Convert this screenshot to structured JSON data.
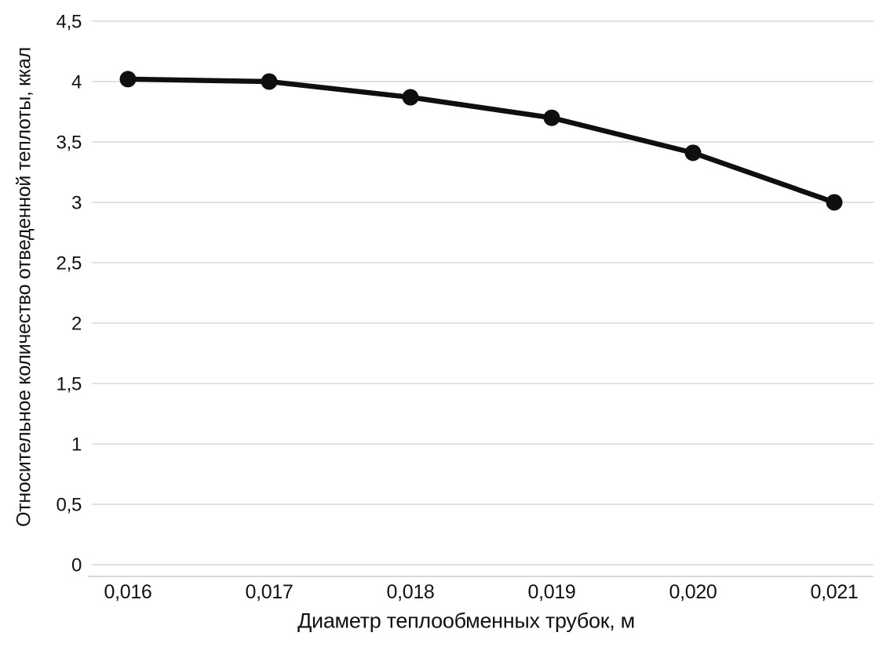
{
  "figure": {
    "background": "#ffffff"
  },
  "chart_data": {
    "type": "line",
    "title": "",
    "x_values": [
      0.016,
      0.017,
      0.018,
      0.019,
      0.02,
      0.021
    ],
    "x_tick_labels": [
      "0,016",
      "0,017",
      "0,018",
      "0,019",
      "0,020",
      "0,021"
    ],
    "series": [
      {
        "name": "",
        "values": [
          4.02,
          4.0,
          3.87,
          3.7,
          3.41,
          3.0
        ]
      }
    ],
    "xlabel": "Диаметр теплообменных трубок, м",
    "ylabel": "Относительное количество отведенной теплоты, ккал",
    "ylim": [
      0,
      4.5
    ],
    "ytick_step": 0.5,
    "y_tick_labels": [
      "0",
      "0,5",
      "1",
      "1,5",
      "2",
      "2,5",
      "3",
      "3,5",
      "4",
      "4,5"
    ],
    "grid": true,
    "legend": false,
    "marker": "circle",
    "colors": {
      "line": "#0f0f0f",
      "marker": "#0f0f0f",
      "grid": "#d9d9d9",
      "axis": "#cccccc",
      "text": "#111111"
    }
  }
}
